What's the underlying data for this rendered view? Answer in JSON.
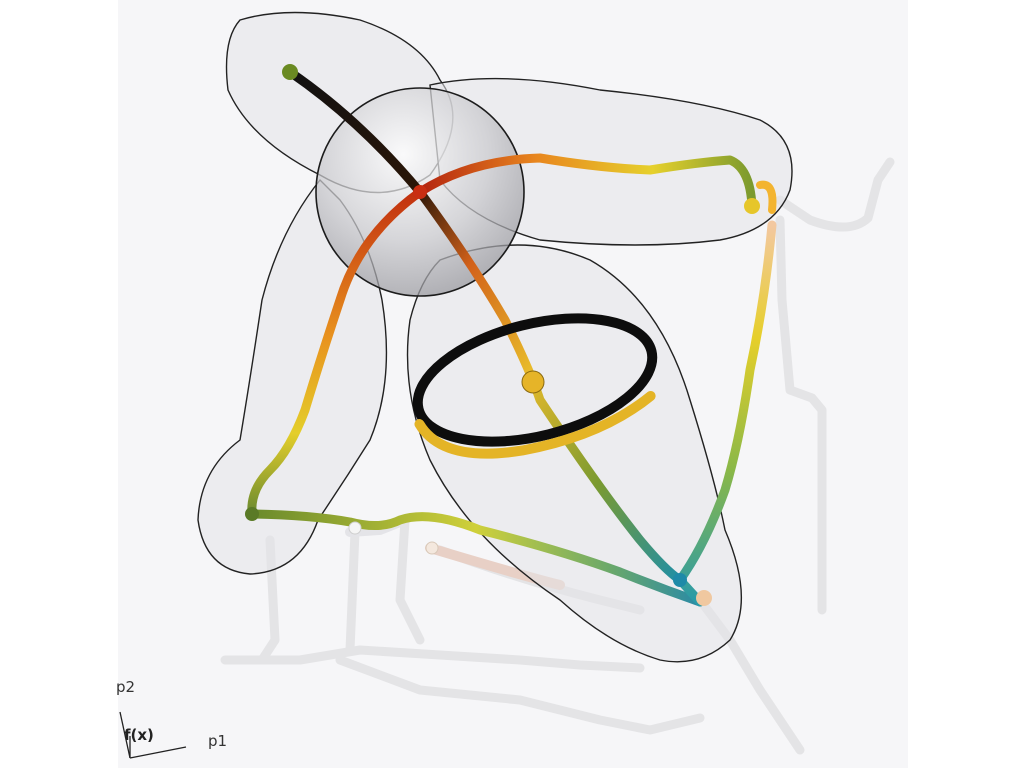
{
  "axes": {
    "p1_label": "p1",
    "p2_label": "p2",
    "fx_label": "f(x)"
  },
  "colors": {
    "background": "#ffffff",
    "panel_background": "#f6f6f8",
    "hull_fill": "#e6e6ea",
    "hull_stroke": "#222222",
    "ghost": "#e8e8ea",
    "arc_black": "#161616",
    "arc_red": "#c22a12",
    "arc_orange": "#e8841c",
    "arc_yellow": "#e8cf2a",
    "arc_green": "#7a9a30",
    "arc_teal": "#2a9aa8",
    "ring_dark": "#101010",
    "ring_gold": "#e2b824"
  }
}
